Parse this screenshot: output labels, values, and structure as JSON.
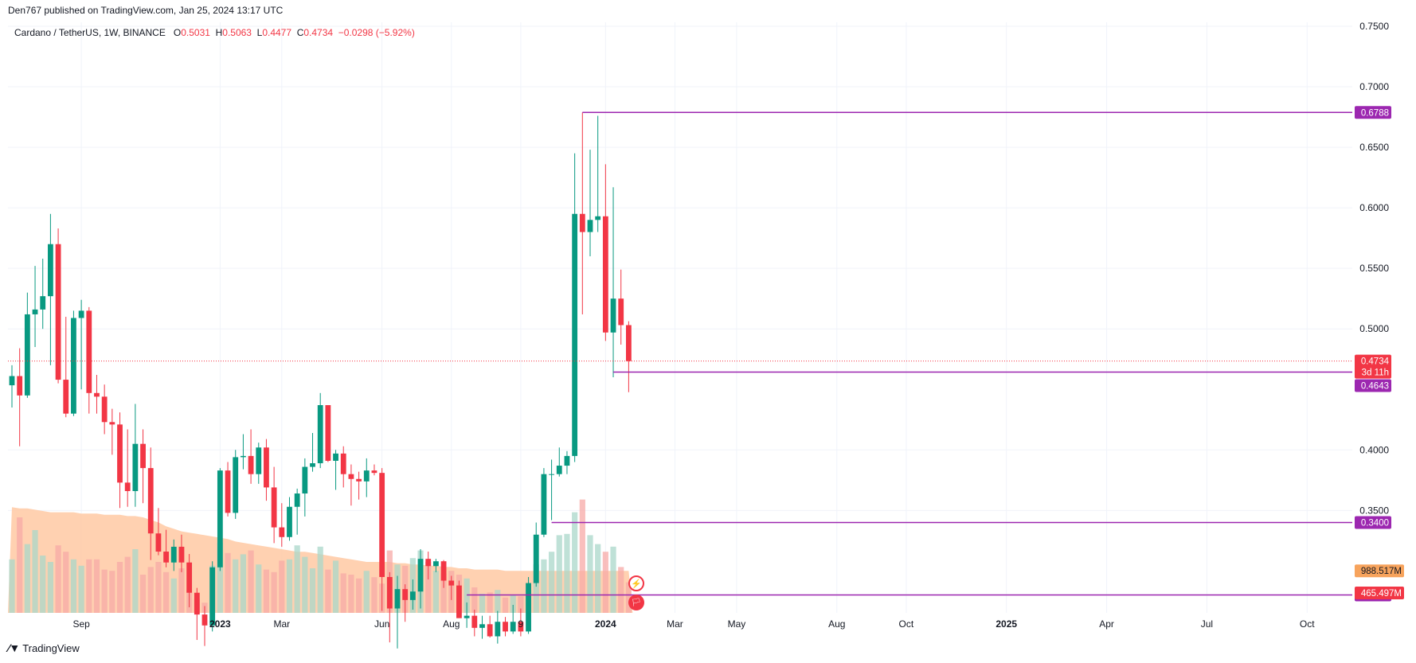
{
  "header": {
    "publisher": "Den767 published on TradingView.com, Jan 25, 2024 13:17 UTC"
  },
  "symbol": {
    "name": "Cardano / TetherUS, 1W, BINANCE",
    "o_label": "O",
    "o": "0.5031",
    "h_label": "H",
    "h": "0.5063",
    "l_label": "L",
    "l": "0.4477",
    "c_label": "C",
    "c": "0.4734",
    "change": "−0.0298 (−5.92%)"
  },
  "footer": {
    "logo_text": "TradingView"
  },
  "colors": {
    "up": "#089981",
    "down": "#f23645",
    "vol_up": "#a9d7c9",
    "vol_down": "#f7a9a7",
    "vol_ma": "#ffcca8",
    "level": "#9c27b0",
    "price_line": "#f23645",
    "vol_badge": "#f7a35c"
  },
  "chart_data": {
    "type": "candlestick",
    "symbol": "Cardano / TetherUS",
    "interval": "1W",
    "exchange": "BINANCE",
    "ylim": [
      0.2667,
      0.75
    ],
    "y_ticks": [
      "0.7500",
      "0.7000",
      "0.6500",
      "0.6000",
      "0.5500",
      "0.5000",
      "0.4000",
      "0.3500"
    ],
    "x_ticks": [
      {
        "label": "Sep",
        "bar": 9
      },
      {
        "label": "2023",
        "bar": 27,
        "bold": true
      },
      {
        "label": "Mar",
        "bar": 35
      },
      {
        "label": "Jun",
        "bar": 48
      },
      {
        "label": "Aug",
        "bar": 57
      },
      {
        "label": "9",
        "bar": 66
      },
      {
        "label": "2024",
        "bar": 77,
        "bold": true
      },
      {
        "label": "Mar",
        "bar": 86
      },
      {
        "label": "May",
        "bar": 94
      },
      {
        "label": "Aug",
        "bar": 107
      },
      {
        "label": "Oct",
        "bar": 116
      },
      {
        "label": "2025",
        "bar": 129,
        "bold": true
      },
      {
        "label": "Apr",
        "bar": 142
      },
      {
        "label": "Jul",
        "bar": 155
      },
      {
        "label": "Oct",
        "bar": 168
      }
    ],
    "ohlc": [
      [
        0.4534,
        0.47,
        0.435,
        0.461
      ],
      [
        0.461,
        0.484,
        0.403,
        0.445
      ],
      [
        0.445,
        0.53,
        0.443,
        0.512
      ],
      [
        0.512,
        0.552,
        0.485,
        0.516
      ],
      [
        0.516,
        0.558,
        0.5,
        0.527
      ],
      [
        0.527,
        0.595,
        0.47,
        0.57
      ],
      [
        0.57,
        0.583,
        0.455,
        0.458
      ],
      [
        0.458,
        0.51,
        0.427,
        0.43
      ],
      [
        0.43,
        0.515,
        0.428,
        0.509
      ],
      [
        0.509,
        0.524,
        0.45,
        0.515
      ],
      [
        0.515,
        0.518,
        0.43,
        0.447
      ],
      [
        0.447,
        0.462,
        0.43,
        0.444
      ],
      [
        0.444,
        0.454,
        0.413,
        0.423
      ],
      [
        0.423,
        0.434,
        0.396,
        0.421
      ],
      [
        0.421,
        0.431,
        0.352,
        0.373
      ],
      [
        0.373,
        0.417,
        0.353,
        0.366
      ],
      [
        0.366,
        0.438,
        0.353,
        0.405
      ],
      [
        0.405,
        0.417,
        0.356,
        0.385
      ],
      [
        0.385,
        0.402,
        0.309,
        0.331
      ],
      [
        0.331,
        0.352,
        0.313,
        0.316
      ],
      [
        0.316,
        0.334,
        0.303,
        0.307
      ],
      [
        0.307,
        0.326,
        0.3,
        0.32
      ],
      [
        0.32,
        0.33,
        0.299,
        0.307
      ],
      [
        0.307,
        0.314,
        0.27,
        0.282
      ],
      [
        0.282,
        0.286,
        0.243,
        0.264
      ],
      [
        0.264,
        0.271,
        0.238,
        0.255
      ],
      [
        0.255,
        0.308,
        0.25,
        0.303
      ],
      [
        0.303,
        0.385,
        0.3,
        0.383
      ],
      [
        0.383,
        0.39,
        0.345,
        0.348
      ],
      [
        0.348,
        0.4,
        0.343,
        0.394
      ],
      [
        0.394,
        0.413,
        0.384,
        0.395
      ],
      [
        0.395,
        0.417,
        0.372,
        0.38
      ],
      [
        0.38,
        0.406,
        0.372,
        0.402
      ],
      [
        0.402,
        0.409,
        0.358,
        0.369
      ],
      [
        0.369,
        0.386,
        0.323,
        0.336
      ],
      [
        0.336,
        0.356,
        0.32,
        0.328
      ],
      [
        0.328,
        0.361,
        0.325,
        0.353
      ],
      [
        0.353,
        0.368,
        0.33,
        0.364
      ],
      [
        0.364,
        0.393,
        0.345,
        0.386
      ],
      [
        0.386,
        0.414,
        0.382,
        0.389
      ],
      [
        0.389,
        0.447,
        0.385,
        0.437
      ],
      [
        0.437,
        0.437,
        0.39,
        0.391
      ],
      [
        0.391,
        0.4,
        0.367,
        0.397
      ],
      [
        0.397,
        0.403,
        0.369,
        0.38
      ],
      [
        0.38,
        0.388,
        0.354,
        0.376
      ],
      [
        0.376,
        0.382,
        0.359,
        0.374
      ],
      [
        0.374,
        0.393,
        0.361,
        0.383
      ],
      [
        0.383,
        0.388,
        0.379,
        0.381
      ],
      [
        0.381,
        0.385,
        0.267,
        0.295
      ],
      [
        0.295,
        0.299,
        0.241,
        0.269
      ],
      [
        0.269,
        0.296,
        0.236,
        0.285
      ],
      [
        0.285,
        0.289,
        0.258,
        0.276
      ],
      [
        0.276,
        0.293,
        0.268,
        0.283
      ],
      [
        0.283,
        0.318,
        0.269,
        0.31
      ],
      [
        0.31,
        0.316,
        0.293,
        0.304
      ],
      [
        0.304,
        0.31,
        0.299,
        0.308
      ],
      [
        0.308,
        0.309,
        0.286,
        0.292
      ],
      [
        0.292,
        0.296,
        0.276,
        0.288
      ],
      [
        0.288,
        0.292,
        0.262,
        0.261
      ],
      [
        0.261,
        0.274,
        0.253,
        0.263
      ],
      [
        0.263,
        0.268,
        0.246,
        0.253
      ],
      [
        0.253,
        0.263,
        0.244,
        0.256
      ],
      [
        0.256,
        0.263,
        0.245,
        0.246
      ],
      [
        0.246,
        0.267,
        0.24,
        0.258
      ],
      [
        0.258,
        0.262,
        0.246,
        0.25
      ],
      [
        0.25,
        0.272,
        0.248,
        0.258
      ],
      [
        0.258,
        0.269,
        0.246,
        0.25
      ],
      [
        0.25,
        0.295,
        0.248,
        0.29
      ],
      [
        0.29,
        0.34,
        0.287,
        0.33
      ],
      [
        0.33,
        0.385,
        0.328,
        0.38
      ],
      [
        0.38,
        0.392,
        0.342,
        0.38
      ],
      [
        0.38,
        0.402,
        0.378,
        0.387
      ],
      [
        0.387,
        0.399,
        0.38,
        0.395
      ],
      [
        0.395,
        0.645,
        0.39,
        0.595
      ],
      [
        0.595,
        0.6788,
        0.512,
        0.58
      ],
      [
        0.58,
        0.648,
        0.56,
        0.59
      ],
      [
        0.59,
        0.676,
        0.58,
        0.593
      ],
      [
        0.593,
        0.636,
        0.49,
        0.497
      ],
      [
        0.497,
        0.617,
        0.46,
        0.525
      ],
      [
        0.525,
        0.549,
        0.487,
        0.5031
      ],
      [
        0.5031,
        0.5063,
        0.4477,
        0.4734
      ]
    ],
    "volume_relative": [
      0.42,
      0.75,
      0.54,
      0.65,
      0.45,
      0.4,
      0.53,
      0.48,
      0.42,
      0.37,
      0.42,
      0.42,
      0.34,
      0.33,
      0.4,
      0.44,
      0.5,
      0.3,
      0.36,
      0.4,
      0.32,
      0.27,
      0.35,
      0.18,
      0.11,
      0.08,
      0.37,
      0.55,
      0.47,
      0.42,
      0.46,
      0.49,
      0.38,
      0.34,
      0.32,
      0.41,
      0.42,
      0.53,
      0.44,
      0.35,
      0.52,
      0.34,
      0.41,
      0.31,
      0.3,
      0.27,
      0.33,
      0.28,
      0.23,
      0.49,
      0.38,
      0.37,
      0.43,
      0.49,
      0.4,
      0.33,
      0.31,
      0.33,
      0.3,
      0.27,
      0.2,
      0.15,
      0.16,
      0.18,
      0.12,
      0.14,
      0.13,
      0.18,
      0.38,
      0.42,
      0.48,
      0.61,
      0.62,
      0.79,
      0.89,
      0.61,
      0.54,
      0.48,
      0.52,
      0.36,
      0.24
    ],
    "volume_ma_relative": [
      0.83,
      0.82,
      0.82,
      0.81,
      0.8,
      0.79,
      0.79,
      0.79,
      0.79,
      0.78,
      0.78,
      0.78,
      0.77,
      0.77,
      0.77,
      0.76,
      0.76,
      0.75,
      0.73,
      0.71,
      0.68,
      0.66,
      0.64,
      0.63,
      0.62,
      0.61,
      0.6,
      0.59,
      0.58,
      0.56,
      0.55,
      0.54,
      0.53,
      0.52,
      0.51,
      0.5,
      0.49,
      0.48,
      0.48,
      0.47,
      0.46,
      0.45,
      0.44,
      0.43,
      0.42,
      0.41,
      0.4,
      0.4,
      0.4,
      0.4,
      0.39,
      0.39,
      0.38,
      0.38,
      0.37,
      0.37,
      0.36,
      0.36,
      0.35,
      0.35,
      0.34,
      0.34,
      0.34,
      0.34,
      0.33,
      0.33,
      0.33,
      0.33,
      0.33,
      0.33,
      0.33,
      0.33,
      0.33,
      0.33,
      0.33,
      0.33,
      0.33,
      0.33,
      0.33,
      0.33,
      0.33
    ],
    "levels": [
      {
        "value": 0.6788,
        "label": "0.6788",
        "from_bar": 74
      },
      {
        "value": 0.4643,
        "label": "0.4643",
        "from_bar": 78
      },
      {
        "value": 0.34,
        "label": "0.3400",
        "from_bar": 70
      },
      {
        "value": 0.2802,
        "label": "0.2802",
        "from_bar": 59
      }
    ],
    "last_price": {
      "value": 0.4734,
      "label": "0.4734",
      "countdown": "3d 11h"
    },
    "volume_badges": {
      "ma": "988.517M",
      "volume": "465.497M"
    }
  }
}
